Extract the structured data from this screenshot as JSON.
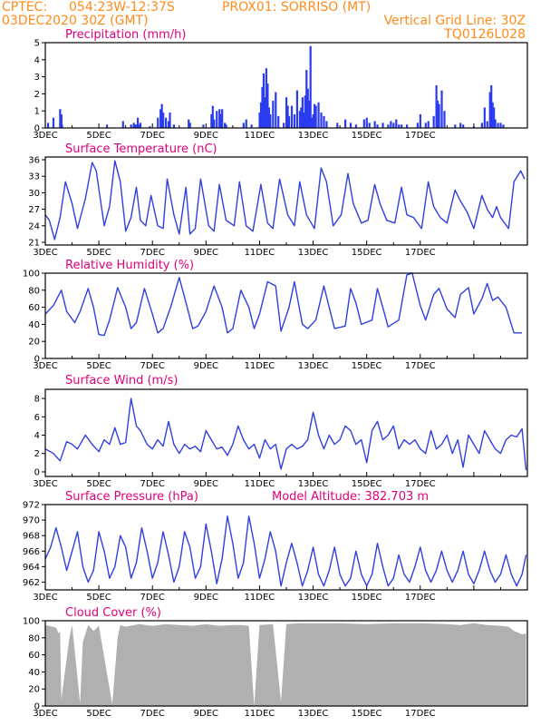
{
  "header": {
    "source": "CPTEC:",
    "location": "054:23W-12:37S",
    "station": "PROX01: SORRISO (MT)",
    "init": "03DEC2020 30Z (GMT)",
    "grid_note": "Vertical Grid Line: 30Z",
    "model": "TQ0126L028"
  },
  "colors": {
    "line": "#2f3fe0",
    "bar": "#2b3cf0",
    "cloud": "#b0b0b0",
    "header": "#ff8c1a",
    "title": "#e0007a"
  },
  "x_labels": [
    "3DEC",
    "5DEC",
    "7DEC",
    "9DEC",
    "11DEC",
    "13DEC",
    "15DEC",
    "17DEC"
  ],
  "chart_data": [
    {
      "type": "bar",
      "title": "Precipitation (mm/h)",
      "x_unit": "days since 3DEC",
      "ylim": [
        0,
        5
      ],
      "yticks": [
        0,
        1,
        2,
        3,
        4,
        5
      ],
      "x": [
        0.1,
        0.3,
        0.55,
        0.6,
        0.62,
        2.3,
        2.9,
        3.2,
        3.3,
        3.35,
        3.4,
        3.45,
        3.5,
        3.55,
        3.9,
        4.2,
        4.3,
        4.35,
        4.4,
        4.5,
        4.6,
        4.65,
        4.8,
        5.35,
        5.4,
        5.9,
        6.2,
        6.25,
        6.3,
        6.4,
        6.5,
        6.55,
        6.6,
        6.7,
        6.75,
        7.4,
        7.5,
        7.7,
        8.0,
        8.05,
        8.1,
        8.15,
        8.2,
        8.25,
        8.3,
        8.35,
        8.4,
        8.5,
        8.6,
        8.7,
        8.9,
        9.0,
        9.05,
        9.1,
        9.2,
        9.3,
        9.4,
        9.5,
        9.55,
        9.6,
        9.65,
        9.7,
        9.75,
        9.8,
        9.85,
        9.9,
        9.95,
        10.0,
        10.05,
        10.1,
        10.2,
        10.3,
        10.4,
        10.5,
        10.9,
        11.2,
        11.4,
        11.6,
        11.9,
        12.0,
        12.1,
        12.3,
        12.4,
        12.6,
        12.8,
        12.9,
        13.0,
        13.1,
        13.2,
        13.3,
        13.5,
        13.9,
        14.0,
        14.2,
        14.3,
        14.5,
        14.6,
        14.65,
        14.7,
        14.8,
        14.9,
        15.3,
        15.5,
        15.6,
        16.0,
        16.3,
        16.4,
        16.5,
        16.6,
        16.65,
        16.7,
        16.75,
        16.8,
        16.9,
        17.0,
        17.1
      ],
      "values": [
        0.3,
        0.6,
        1.1,
        0.8,
        0.2,
        0.2,
        0.4,
        0.2,
        0.3,
        0.2,
        0.2,
        0.6,
        0.2,
        0.3,
        0.1,
        0.6,
        1.1,
        1.4,
        0.9,
        0.6,
        0.4,
        0.9,
        0.2,
        0.5,
        0.3,
        0.2,
        0.8,
        1.3,
        0.5,
        1.0,
        1.1,
        0.8,
        1.1,
        0.3,
        0.2,
        0.3,
        0.5,
        0.2,
        0.9,
        1.5,
        2.4,
        3.2,
        1.8,
        3.5,
        2.6,
        1.2,
        0.8,
        1.6,
        2.1,
        0.7,
        0.3,
        1.8,
        1.3,
        0.7,
        1.3,
        0.8,
        2.2,
        1.0,
        1.2,
        1.8,
        0.9,
        1.9,
        3.4,
        2.3,
        1.6,
        4.8,
        0.6,
        0.8,
        1.4,
        1.3,
        1.5,
        0.9,
        0.7,
        0.4,
        0.3,
        0.5,
        0.3,
        0.2,
        0.5,
        0.6,
        0.3,
        0.4,
        0.2,
        0.3,
        0.2,
        0.4,
        0.3,
        0.5,
        0.2,
        0.2,
        0.2,
        0.3,
        0.8,
        0.3,
        0.4,
        0.7,
        2.5,
        1.6,
        1.4,
        2.2,
        1.0,
        0.2,
        0.3,
        0.2,
        0.1,
        0.3,
        1.2,
        0.4,
        2.1,
        2.5,
        1.5,
        1.2,
        0.5,
        0.3,
        0.3,
        0.2
      ]
    },
    {
      "type": "line",
      "title": "Surface Temperature (nC)",
      "x_unit": "days since 3DEC",
      "ylim": [
        20.5,
        36.5
      ],
      "yticks": [
        21,
        24,
        27,
        30,
        33,
        36
      ],
      "x": [
        0,
        0.15,
        0.35,
        0.55,
        0.75,
        1.0,
        1.2,
        1.5,
        1.75,
        1.9,
        2.2,
        2.4,
        2.6,
        2.8,
        3.0,
        3.2,
        3.4,
        3.55,
        3.75,
        3.95,
        4.2,
        4.4,
        4.55,
        4.8,
        5.0,
        5.25,
        5.4,
        5.6,
        5.8,
        6.1,
        6.3,
        6.5,
        6.75,
        7.05,
        7.25,
        7.5,
        7.75,
        8.05,
        8.3,
        8.5,
        8.75,
        9.05,
        9.3,
        9.5,
        9.75,
        10.05,
        10.3,
        10.5,
        10.75,
        11.05,
        11.3,
        11.5,
        11.8,
        12.05,
        12.3,
        12.5,
        12.75,
        13.05,
        13.3,
        13.5,
        13.75,
        14.05,
        14.3,
        14.5,
        14.75,
        15.0,
        15.3,
        15.5,
        15.75,
        16.0,
        16.3,
        16.5,
        16.7,
        16.85,
        17.0,
        17.3,
        17.5,
        17.75,
        17.9
      ],
      "values": [
        26,
        25,
        21.5,
        25.5,
        32,
        28,
        23.5,
        29,
        35.5,
        34,
        24,
        27.5,
        35.8,
        32,
        23,
        25.5,
        31,
        25,
        24,
        29.5,
        24,
        23.5,
        32.5,
        26,
        22.5,
        31,
        22.5,
        23.5,
        32.5,
        24,
        23,
        31.5,
        25,
        24,
        32,
        24,
        23,
        31.5,
        24.5,
        23.5,
        32.5,
        26,
        24,
        32,
        26,
        23.5,
        34.5,
        32,
        24,
        26,
        33.5,
        28,
        24.5,
        25,
        31.5,
        28,
        25,
        24.5,
        31,
        26,
        25.5,
        23.5,
        32,
        27.5,
        25.5,
        24.5,
        30.5,
        28.5,
        26.5,
        23.5,
        29.5,
        27,
        25.5,
        27.5,
        25.5,
        23.5,
        32,
        34,
        32.5
      ]
    },
    {
      "type": "line",
      "title": "Relative Humidity (%)",
      "x_unit": "days since 3DEC",
      "ylim": [
        0,
        100
      ],
      "yticks": [
        0,
        20,
        40,
        60,
        80,
        100
      ],
      "x": [
        0,
        0.3,
        0.6,
        0.8,
        1.1,
        1.3,
        1.6,
        1.8,
        2.0,
        2.2,
        2.4,
        2.7,
        3.0,
        3.2,
        3.4,
        3.7,
        4.0,
        4.2,
        4.4,
        4.7,
        5.0,
        5.3,
        5.5,
        5.7,
        6.0,
        6.3,
        6.6,
        6.8,
        7.0,
        7.3,
        7.6,
        7.8,
        8.0,
        8.3,
        8.6,
        8.8,
        9.1,
        9.3,
        9.6,
        9.8,
        10.1,
        10.4,
        10.6,
        10.8,
        11.2,
        11.4,
        11.6,
        11.8,
        12.2,
        12.4,
        12.6,
        12.8,
        13.2,
        13.5,
        13.7,
        14.0,
        14.2,
        14.5,
        14.7,
        15.0,
        15.3,
        15.5,
        15.8,
        16.0,
        16.3,
        16.5,
        16.7,
        16.9,
        17.2,
        17.5,
        17.8
      ],
      "values": [
        52,
        62,
        80,
        55,
        42,
        55,
        82,
        60,
        28,
        27,
        45,
        83,
        60,
        35,
        42,
        82,
        52,
        30,
        35,
        62,
        95,
        60,
        35,
        38,
        55,
        85,
        60,
        30,
        35,
        80,
        60,
        35,
        52,
        90,
        85,
        32,
        60,
        90,
        40,
        35,
        45,
        85,
        60,
        35,
        38,
        82,
        65,
        40,
        45,
        82,
        60,
        37,
        45,
        98,
        100,
        62,
        45,
        75,
        82,
        58,
        48,
        75,
        83,
        52,
        70,
        88,
        68,
        72,
        60,
        30,
        30
      ]
    },
    {
      "type": "line",
      "title": "Surface Wind (m/s)",
      "x_unit": "days since 3DEC",
      "ylim": [
        -0.5,
        9
      ],
      "yticks": [
        0,
        2,
        4,
        6,
        8
      ],
      "x": [
        0,
        0.3,
        0.55,
        0.8,
        1.0,
        1.2,
        1.5,
        1.75,
        2.0,
        2.2,
        2.4,
        2.6,
        2.8,
        3.0,
        3.2,
        3.4,
        3.55,
        3.8,
        4.0,
        4.2,
        4.4,
        4.6,
        4.8,
        5.0,
        5.2,
        5.4,
        5.6,
        5.8,
        6.0,
        6.2,
        6.4,
        6.6,
        6.8,
        7.0,
        7.2,
        7.4,
        7.6,
        7.8,
        8.0,
        8.2,
        8.4,
        8.6,
        8.8,
        9.0,
        9.2,
        9.4,
        9.6,
        9.8,
        10.0,
        10.2,
        10.4,
        10.6,
        10.8,
        11.0,
        11.2,
        11.4,
        11.6,
        11.8,
        12.0,
        12.2,
        12.4,
        12.6,
        12.8,
        13.0,
        13.2,
        13.4,
        13.6,
        13.8,
        14.0,
        14.2,
        14.4,
        14.6,
        14.8,
        15.0,
        15.2,
        15.4,
        15.6,
        15.8,
        16.0,
        16.2,
        16.4,
        16.6,
        16.8,
        17.0,
        17.2,
        17.4,
        17.6,
        17.8,
        17.95
      ],
      "values": [
        2.5,
        2.0,
        1.2,
        3.3,
        3.0,
        2.5,
        4.0,
        3.0,
        2.2,
        3.5,
        3.0,
        4.8,
        3.0,
        3.2,
        8.0,
        5.0,
        4.5,
        3.0,
        2.5,
        3.5,
        2.8,
        5.5,
        3.0,
        2.0,
        3.0,
        2.5,
        2.8,
        2.2,
        4.5,
        3.5,
        2.5,
        2.7,
        1.8,
        3.0,
        5.0,
        3.5,
        2.5,
        3.0,
        1.5,
        3.5,
        2.5,
        3.0,
        0.3,
        2.5,
        3.0,
        2.5,
        2.8,
        3.5,
        6.5,
        4.0,
        2.5,
        4.0,
        3.0,
        3.5,
        5.0,
        4.5,
        3.0,
        3.5,
        1.0,
        4.5,
        5.5,
        3.5,
        4.0,
        5.0,
        2.5,
        3.5,
        3.0,
        3.5,
        2.5,
        2.0,
        4.5,
        2.5,
        3.0,
        4.0,
        2.0,
        3.5,
        0.5,
        4.0,
        3.0,
        2.0,
        4.5,
        3.5,
        2.5,
        2.0,
        3.5,
        4.0,
        3.8,
        4.7,
        0.2
      ]
    },
    {
      "type": "line",
      "title": "Surface Pressure (hPa)",
      "annotation": "Model Altitude: 382.703 m",
      "x_unit": "days since 3DEC",
      "ylim": [
        961,
        972
      ],
      "yticks": [
        962,
        964,
        966,
        968,
        970,
        972
      ],
      "x": [
        0,
        0.2,
        0.4,
        0.6,
        0.8,
        1.0,
        1.2,
        1.4,
        1.6,
        1.8,
        2.0,
        2.2,
        2.4,
        2.6,
        2.8,
        3.0,
        3.2,
        3.4,
        3.6,
        3.8,
        4.0,
        4.2,
        4.4,
        4.6,
        4.8,
        5.0,
        5.2,
        5.4,
        5.6,
        5.8,
        6.0,
        6.2,
        6.4,
        6.6,
        6.8,
        7.0,
        7.2,
        7.4,
        7.6,
        7.8,
        8.0,
        8.2,
        8.4,
        8.6,
        8.8,
        9.0,
        9.2,
        9.4,
        9.6,
        9.8,
        10.0,
        10.2,
        10.4,
        10.6,
        10.8,
        11.0,
        11.2,
        11.4,
        11.6,
        11.8,
        12.0,
        12.2,
        12.4,
        12.6,
        12.8,
        13.0,
        13.2,
        13.4,
        13.6,
        13.8,
        14.0,
        14.2,
        14.4,
        14.6,
        14.8,
        15.0,
        15.2,
        15.4,
        15.6,
        15.8,
        16.0,
        16.2,
        16.4,
        16.6,
        16.8,
        17.0,
        17.2,
        17.4,
        17.6,
        17.8,
        17.95
      ],
      "values": [
        965,
        966.5,
        969,
        966.5,
        963.5,
        966,
        968.5,
        964,
        962,
        963.5,
        968.5,
        966,
        962.5,
        964,
        968,
        966.5,
        962.5,
        964.5,
        969,
        966,
        962.5,
        964.5,
        968.5,
        965.5,
        962,
        964,
        968.5,
        966.5,
        962.5,
        964,
        969.5,
        966,
        961.8,
        965,
        970.5,
        967,
        962.5,
        964.5,
        970.5,
        967,
        962.5,
        965,
        968.5,
        966,
        961.5,
        964.5,
        967,
        964.5,
        961.5,
        963.5,
        966.5,
        963,
        961.5,
        963.5,
        966.5,
        963,
        961.5,
        962.5,
        966,
        963,
        961.5,
        963,
        967,
        964,
        961.5,
        962.5,
        965.5,
        963,
        962,
        964,
        966.5,
        963.5,
        962,
        963.5,
        966,
        963.5,
        962,
        963.5,
        966,
        963,
        961.8,
        963.5,
        966,
        963.5,
        962,
        963,
        965.5,
        963,
        961.5,
        963,
        965.5
      ]
    },
    {
      "type": "area",
      "title": "Cloud Cover (%)",
      "x_unit": "days since 3DEC",
      "ylim": [
        0,
        100
      ],
      "yticks": [
        0,
        20,
        40,
        60,
        80,
        100
      ],
      "x": [
        0,
        0.4,
        0.5,
        0.55,
        0.6,
        0.9,
        1.0,
        1.3,
        1.4,
        1.6,
        1.8,
        2.0,
        2.5,
        2.7,
        2.8,
        3.0,
        3.5,
        4.0,
        4.5,
        5.0,
        5.5,
        6.0,
        6.5,
        7.0,
        7.15,
        7.3,
        7.6,
        7.8,
        8.0,
        8.5,
        8.8,
        9.0,
        9.5,
        10.0,
        11.0,
        12.0,
        13.0,
        14.0,
        15.0,
        15.5,
        16.0,
        16.5,
        17.0,
        17.3,
        17.5,
        17.8,
        17.95
      ],
      "values": [
        95,
        92,
        85,
        88,
        8,
        80,
        95,
        3,
        75,
        95,
        88,
        94,
        2,
        80,
        95,
        93,
        96,
        94,
        96,
        95,
        94,
        96,
        94,
        95,
        95,
        95,
        94,
        0,
        95,
        96,
        5,
        96,
        97,
        97,
        97,
        96,
        97,
        97,
        96,
        95,
        97,
        95,
        94,
        93,
        88,
        84,
        85
      ]
    }
  ]
}
